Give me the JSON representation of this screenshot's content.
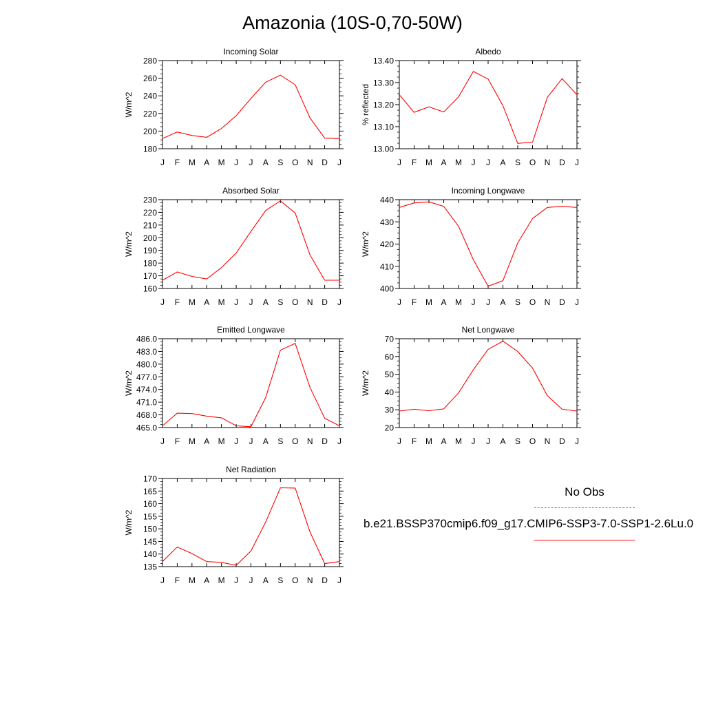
{
  "title": "Amazonia (10S-0,70-50W)",
  "series_color": "#ff0000",
  "obs_color": "#6b6bff",
  "legend": {
    "obs_label": "No Obs",
    "model_label": "b.e21.BSSP370cmip6.f09_g17.CMIP6-SSP3-7.0-SSP1-2.6Lu.0"
  },
  "chart_data": [
    {
      "type": "line",
      "title": "Incoming Solar",
      "ylabel": "W/m^2",
      "categories": [
        "J",
        "F",
        "M",
        "A",
        "M",
        "J",
        "J",
        "A",
        "S",
        "O",
        "N",
        "D",
        "J"
      ],
      "values": [
        191.5,
        199,
        195,
        193,
        203,
        217.5,
        237,
        255.5,
        263.5,
        252.5,
        215,
        192,
        191.5
      ],
      "ylim": [
        180,
        280
      ],
      "yticks": [
        "180",
        "200",
        "220",
        "240",
        "260",
        "280"
      ]
    },
    {
      "type": "line",
      "title": "Albedo",
      "ylabel": "% reflected",
      "categories": [
        "J",
        "F",
        "M",
        "A",
        "M",
        "J",
        "J",
        "A",
        "S",
        "O",
        "N",
        "D",
        "J"
      ],
      "values": [
        13.245,
        13.165,
        13.19,
        13.167,
        13.235,
        13.351,
        13.316,
        13.195,
        13.024,
        13.03,
        13.233,
        13.318,
        13.245
      ],
      "ylim": [
        13.0,
        13.4
      ],
      "yticks": [
        "13.00",
        "13.10",
        "13.20",
        "13.30",
        "13.40"
      ]
    },
    {
      "type": "line",
      "title": "Absorbed Solar",
      "ylabel": "W/m^2",
      "categories": [
        "J",
        "F",
        "M",
        "A",
        "M",
        "J",
        "J",
        "A",
        "S",
        "O",
        "N",
        "D",
        "J"
      ],
      "values": [
        166.5,
        173,
        169.5,
        167.5,
        176.5,
        188,
        205,
        221.5,
        229,
        219.5,
        186.5,
        166.5,
        166.5
      ],
      "ylim": [
        160,
        230
      ],
      "yticks": [
        "160",
        "170",
        "180",
        "190",
        "200",
        "210",
        "220",
        "230"
      ]
    },
    {
      "type": "line",
      "title": "Incoming Longwave",
      "ylabel": "W/m^2",
      "categories": [
        "J",
        "F",
        "M",
        "A",
        "M",
        "J",
        "J",
        "A",
        "S",
        "O",
        "N",
        "D",
        "J"
      ],
      "values": [
        436.5,
        438.5,
        439,
        437,
        428,
        413,
        401,
        403.5,
        420.5,
        431.5,
        436.5,
        437,
        436.5
      ],
      "ylim": [
        400,
        440
      ],
      "yticks": [
        "400",
        "410",
        "420",
        "430",
        "440"
      ]
    },
    {
      "type": "line",
      "title": "Emitted Longwave",
      "ylabel": "W/m^2",
      "categories": [
        "J",
        "F",
        "M",
        "A",
        "M",
        "J",
        "J",
        "A",
        "S",
        "O",
        "N",
        "D",
        "J"
      ],
      "values": [
        465.4,
        468.4,
        468.3,
        467.7,
        467.3,
        465.4,
        465.2,
        472.1,
        483.3,
        484.9,
        474.5,
        467.2,
        465.4
      ],
      "ylim": [
        465.0,
        486.0
      ],
      "yticks": [
        "465.0",
        "468.0",
        "471.0",
        "474.0",
        "477.0",
        "480.0",
        "483.0",
        "486.0"
      ]
    },
    {
      "type": "line",
      "title": "Net Longwave",
      "ylabel": "W/m^2",
      "categories": [
        "J",
        "F",
        "M",
        "A",
        "M",
        "J",
        "J",
        "A",
        "S",
        "O",
        "N",
        "D",
        "J"
      ],
      "values": [
        29.3,
        30.3,
        29.5,
        30.5,
        39.5,
        52.5,
        64,
        68.7,
        62.8,
        53.5,
        38,
        30.3,
        29.3
      ],
      "ylim": [
        20,
        70
      ],
      "yticks": [
        "20",
        "30",
        "40",
        "50",
        "60",
        "70"
      ]
    },
    {
      "type": "line",
      "title": "Net Radiation",
      "ylabel": "W/m^2",
      "categories": [
        "J",
        "F",
        "M",
        "A",
        "M",
        "J",
        "J",
        "A",
        "S",
        "O",
        "N",
        "D",
        "J"
      ],
      "values": [
        137,
        142.8,
        140.2,
        137,
        136.7,
        135.5,
        141.2,
        152.7,
        166.3,
        166.2,
        148.8,
        136.2,
        137
      ],
      "ylim": [
        135,
        170
      ],
      "yticks": [
        "135",
        "140",
        "145",
        "150",
        "155",
        "160",
        "165",
        "170"
      ]
    }
  ]
}
